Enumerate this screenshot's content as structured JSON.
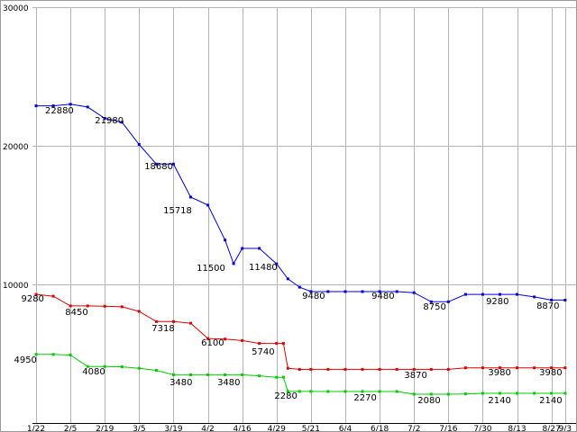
{
  "chart_data": {
    "type": "line",
    "ylim": [
      0,
      30000
    ],
    "grid": true,
    "colors": {
      "grid": "#b4b4b4",
      "axis": "#000000",
      "frame": "#9a9a9a",
      "text": "#000000",
      "background": "#ffffff"
    },
    "y_ticks": [
      {
        "label": "30000",
        "value": 30000
      },
      {
        "label": "20000",
        "value": 20000
      },
      {
        "label": "10000",
        "value": 10000
      }
    ],
    "x_ticks": [
      {
        "label": "1/22",
        "u": 0
      },
      {
        "label": "2/5",
        "u": 1
      },
      {
        "label": "2/19",
        "u": 2
      },
      {
        "label": "3/5",
        "u": 3
      },
      {
        "label": "3/19",
        "u": 4
      },
      {
        "label": "4/2",
        "u": 5
      },
      {
        "label": "4/16",
        "u": 6
      },
      {
        "label": "4/29",
        "u": 7
      },
      {
        "label": "5/21",
        "u": 8
      },
      {
        "label": "6/4",
        "u": 9
      },
      {
        "label": "6/18",
        "u": 10
      },
      {
        "label": "7/2",
        "u": 11
      },
      {
        "label": "7/16",
        "u": 12
      },
      {
        "label": "7/30",
        "u": 13
      },
      {
        "label": "8/13",
        "u": 14
      },
      {
        "label": "8/27",
        "u": 15
      },
      {
        "label": "9/3",
        "u": 15.4
      }
    ],
    "series": [
      {
        "name": "blue",
        "color": "#0000dd",
        "points": [
          [
            0,
            22880
          ],
          [
            0.5,
            22880
          ],
          [
            1,
            23000
          ],
          [
            1.5,
            22800
          ],
          [
            2,
            21980
          ],
          [
            2.5,
            21700
          ],
          [
            3,
            20100
          ],
          [
            3.5,
            18680
          ],
          [
            4,
            18680
          ],
          [
            4.5,
            16300
          ],
          [
            5,
            15718
          ],
          [
            5.5,
            13200
          ],
          [
            5.75,
            11500
          ],
          [
            6,
            12600
          ],
          [
            6.5,
            12600
          ],
          [
            7,
            11480
          ],
          [
            7.33,
            10400
          ],
          [
            7.67,
            9800
          ],
          [
            8,
            9480
          ],
          [
            8.5,
            9480
          ],
          [
            9,
            9480
          ],
          [
            9.5,
            9480
          ],
          [
            10,
            9480
          ],
          [
            10.5,
            9480
          ],
          [
            11,
            9400
          ],
          [
            11.5,
            8750
          ],
          [
            12,
            8750
          ],
          [
            12.5,
            9280
          ],
          [
            13,
            9280
          ],
          [
            13.5,
            9280
          ],
          [
            14,
            9280
          ],
          [
            14.5,
            9100
          ],
          [
            15,
            8870
          ],
          [
            15.4,
            8870
          ]
        ]
      },
      {
        "name": "red",
        "color": "#dd0000",
        "points": [
          [
            0,
            9280
          ],
          [
            0.5,
            9150
          ],
          [
            1,
            8450
          ],
          [
            1.5,
            8450
          ],
          [
            2,
            8420
          ],
          [
            2.5,
            8380
          ],
          [
            3,
            8050
          ],
          [
            3.5,
            7318
          ],
          [
            4,
            7318
          ],
          [
            4.5,
            7200
          ],
          [
            5,
            6100
          ],
          [
            5.5,
            6050
          ],
          [
            6,
            5950
          ],
          [
            6.5,
            5740
          ],
          [
            7,
            5740
          ],
          [
            7.2,
            5740
          ],
          [
            7.33,
            3950
          ],
          [
            7.67,
            3870
          ],
          [
            8,
            3870
          ],
          [
            8.5,
            3870
          ],
          [
            9,
            3870
          ],
          [
            9.5,
            3870
          ],
          [
            10,
            3870
          ],
          [
            10.5,
            3870
          ],
          [
            11,
            3870
          ],
          [
            11.5,
            3870
          ],
          [
            12,
            3870
          ],
          [
            12.5,
            3980
          ],
          [
            13,
            3980
          ],
          [
            13.5,
            3980
          ],
          [
            14,
            3980
          ],
          [
            14.5,
            3980
          ],
          [
            15,
            3980
          ],
          [
            15.4,
            3980
          ]
        ]
      },
      {
        "name": "green",
        "color": "#00cc00",
        "points": [
          [
            0,
            4950
          ],
          [
            0.5,
            4950
          ],
          [
            1,
            4900
          ],
          [
            1.5,
            4080
          ],
          [
            2,
            4080
          ],
          [
            2.5,
            4050
          ],
          [
            3,
            3950
          ],
          [
            3.5,
            3800
          ],
          [
            4,
            3480
          ],
          [
            4.5,
            3480
          ],
          [
            5,
            3480
          ],
          [
            5.5,
            3480
          ],
          [
            6,
            3480
          ],
          [
            6.5,
            3400
          ],
          [
            7,
            3300
          ],
          [
            7.2,
            3300
          ],
          [
            7.33,
            2280
          ],
          [
            7.67,
            2280
          ],
          [
            8,
            2280
          ],
          [
            8.5,
            2270
          ],
          [
            9,
            2270
          ],
          [
            9.5,
            2270
          ],
          [
            10,
            2270
          ],
          [
            10.5,
            2270
          ],
          [
            11,
            2080
          ],
          [
            11.5,
            2080
          ],
          [
            12,
            2080
          ],
          [
            12.5,
            2100
          ],
          [
            13,
            2140
          ],
          [
            13.5,
            2140
          ],
          [
            14,
            2140
          ],
          [
            14.5,
            2140
          ],
          [
            15,
            2140
          ],
          [
            15.4,
            2140
          ]
        ]
      }
    ],
    "annotations": [
      {
        "text": "22880",
        "u": 0.68,
        "v": 22340
      },
      {
        "text": "21980",
        "u": 2.13,
        "v": 21620
      },
      {
        "text": "18680",
        "u": 3.57,
        "v": 18310
      },
      {
        "text": "15718",
        "u": 4.12,
        "v": 15130
      },
      {
        "text": "11500",
        "u": 5.09,
        "v": 10970
      },
      {
        "text": "11480",
        "u": 6.61,
        "v": 11040
      },
      {
        "text": "9480",
        "u": 8.08,
        "v": 8960
      },
      {
        "text": "9480",
        "u": 10.1,
        "v": 8960
      },
      {
        "text": "8750",
        "u": 11.6,
        "v": 8180
      },
      {
        "text": "9280",
        "u": 13.43,
        "v": 8570
      },
      {
        "text": "8870",
        "u": 14.9,
        "v": 8250
      },
      {
        "text": "9280",
        "u": -0.1,
        "v": 8770
      },
      {
        "text": "8450",
        "u": 1.18,
        "v": 7790
      },
      {
        "text": "7318",
        "u": 3.7,
        "v": 6620
      },
      {
        "text": "6100",
        "u": 5.14,
        "v": 5580
      },
      {
        "text": "5740",
        "u": 6.61,
        "v": 4940
      },
      {
        "text": "3870",
        "u": 11.05,
        "v": 3250
      },
      {
        "text": "3980",
        "u": 13.49,
        "v": 3440
      },
      {
        "text": "3980",
        "u": 14.98,
        "v": 3440
      },
      {
        "text": "4950",
        "u": -0.31,
        "v": 4350
      },
      {
        "text": "4080",
        "u": 1.68,
        "v": 3510
      },
      {
        "text": "3480",
        "u": 4.22,
        "v": 2730
      },
      {
        "text": "3480",
        "u": 5.61,
        "v": 2730
      },
      {
        "text": "2280",
        "u": 7.27,
        "v": 1750
      },
      {
        "text": "2270",
        "u": 9.58,
        "v": 1620
      },
      {
        "text": "2080",
        "u": 11.44,
        "v": 1430
      },
      {
        "text": "2140",
        "u": 13.49,
        "v": 1430
      },
      {
        "text": "2140",
        "u": 14.98,
        "v": 1430
      }
    ]
  }
}
